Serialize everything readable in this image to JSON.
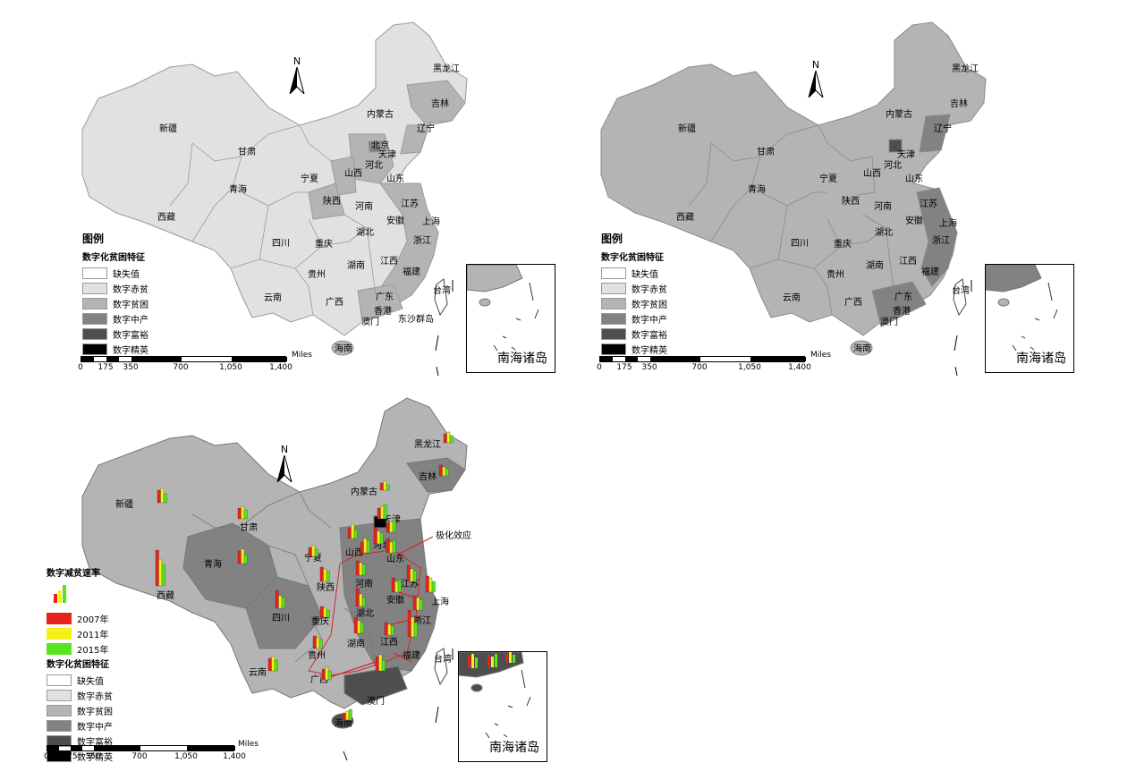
{
  "panels": [
    {
      "id": "a",
      "legend": {
        "title": "图例",
        "subtitle": "数字化贫困特征",
        "items": [
          {
            "label": "缺失值",
            "color": "#ffffff"
          },
          {
            "label": "数字赤贫",
            "color": "#e1e1e1"
          },
          {
            "label": "数字贫困",
            "color": "#b4b4b4"
          },
          {
            "label": "数字中产",
            "color": "#828282"
          },
          {
            "label": "数字富裕",
            "color": "#4e4e4e"
          },
          {
            "label": "数字精英",
            "color": "#000000"
          }
        ]
      },
      "provinces": [
        "黑龙江",
        "吉林",
        "辽宁",
        "内蒙古",
        "新疆",
        "甘肃",
        "北京",
        "天津",
        "河北",
        "山西",
        "宁夏",
        "青海",
        "陕西",
        "山东",
        "江苏",
        "河南",
        "安徽",
        "上海",
        "西藏",
        "四川",
        "重庆",
        "湖北",
        "浙江",
        "贵州",
        "湖南",
        "江西",
        "福建",
        "云南",
        "广西",
        "广东",
        "台湾",
        "澳门",
        "海南",
        "香港"
      ]
    },
    {
      "id": "b",
      "legend": {
        "title": "图例",
        "subtitle": "数字化贫困特征",
        "items": [
          {
            "label": "缺失值",
            "color": "#ffffff"
          },
          {
            "label": "数字赤贫",
            "color": "#e1e1e1"
          },
          {
            "label": "数字贫困",
            "color": "#b4b4b4"
          },
          {
            "label": "数字中产",
            "color": "#828282"
          },
          {
            "label": "数字富裕",
            "color": "#4e4e4e"
          },
          {
            "label": "数字精英",
            "color": "#000000"
          }
        ]
      }
    },
    {
      "id": "c",
      "legend": {
        "chart_title": "数字减贫速率",
        "years": [
          {
            "label": "2007年",
            "color": "#e8201e"
          },
          {
            "label": "2011年",
            "color": "#f5f01a"
          },
          {
            "label": "2015年",
            "color": "#55e61f"
          }
        ],
        "subtitle": "数字化贫困特征",
        "items": [
          {
            "label": "缺失值",
            "color": "#ffffff"
          },
          {
            "label": "数字赤贫",
            "color": "#e1e1e1"
          },
          {
            "label": "数字贫困",
            "color": "#b4b4b4"
          },
          {
            "label": "数字中产",
            "color": "#828282"
          },
          {
            "label": "数字富裕",
            "color": "#4e4e4e"
          },
          {
            "label": "数字精英",
            "color": "#000000"
          }
        ]
      },
      "annotation": "极化效应"
    }
  ],
  "north_label": "N",
  "scale": {
    "unit": "Miles",
    "ticks": [
      "0",
      "175",
      "350",
      "700",
      "1,050",
      "1,400"
    ]
  },
  "inset_label": "南海诸岛",
  "small_labels": {
    "taiwan": "台湾",
    "hongkong": "香港",
    "macau": "澳门",
    "hainan": "海南",
    "islands": "东沙群岛"
  }
}
